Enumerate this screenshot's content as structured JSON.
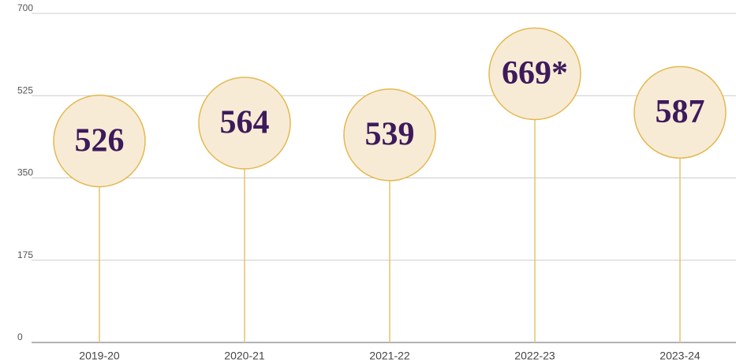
{
  "chart_data": {
    "type": "lollipop",
    "categories": [
      "2019-20",
      "2020-21",
      "2021-22",
      "2022-23",
      "2023-24"
    ],
    "values": [
      526,
      564,
      539,
      669,
      587
    ],
    "value_labels": [
      "526",
      "564",
      "539",
      "669*",
      "587"
    ],
    "color": "#e5c46a",
    "marker_fill": "#f8ebd6",
    "marker_stroke": "#e3b94f",
    "label_color": "#3d1a5b",
    "ylim": [
      0,
      700
    ],
    "yticks": [
      0,
      175,
      350,
      525,
      700
    ],
    "grid": true
  }
}
